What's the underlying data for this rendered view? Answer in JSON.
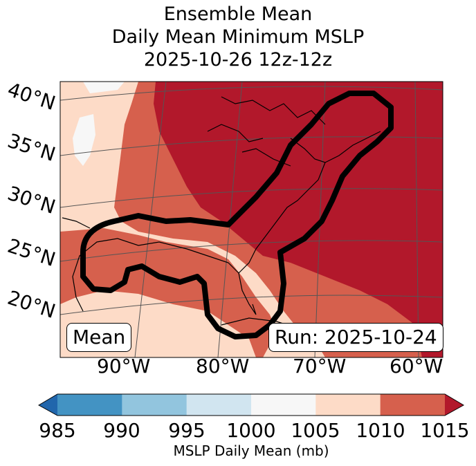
{
  "title": {
    "line1": "Ensemble Mean",
    "line2": "Daily Mean Minimum MSLP",
    "line3": "2025-10-26 12z-12z"
  },
  "map": {
    "lat_labels": [
      "40°N",
      "35°N",
      "30°N",
      "25°N",
      "20°N"
    ],
    "lon_labels": [
      "90°W",
      "80°W",
      "70°W",
      "60°W"
    ],
    "left_box": "Mean",
    "right_box": "Run: 2025-10-24",
    "contour": "black probability/threshold outline around US East Coast and Gulf"
  },
  "colorbar": {
    "ticks": [
      "985",
      "990",
      "995",
      "1000",
      "1005",
      "1010",
      "1015"
    ],
    "label": "MSLP Daily Mean (mb)",
    "colors": [
      "#2166ac",
      "#4393c3",
      "#92c5de",
      "#d1e5f0",
      "#f7f7f7",
      "#fddbc7",
      "#d6604d",
      "#b2182b"
    ]
  }
}
